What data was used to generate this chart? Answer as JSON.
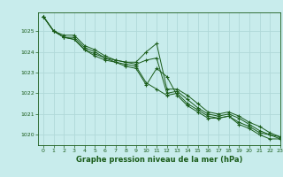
{
  "title": "Graphe pression niveau de la mer (hPa)",
  "background_color": "#c8ecec",
  "grid_color": "#b0d8d8",
  "line_color": "#1a5c1a",
  "text_color": "#1a5c1a",
  "xlim": [
    -0.5,
    23
  ],
  "ylim": [
    1019.5,
    1025.9
  ],
  "xticks": [
    0,
    1,
    2,
    3,
    4,
    5,
    6,
    7,
    8,
    9,
    10,
    11,
    12,
    13,
    14,
    15,
    16,
    17,
    18,
    19,
    20,
    21,
    22,
    23
  ],
  "yticks": [
    1020,
    1021,
    1022,
    1023,
    1024,
    1025
  ],
  "series": [
    [
      1025.7,
      1025.0,
      1024.7,
      1024.6,
      1024.1,
      1023.8,
      1023.6,
      1023.5,
      1023.3,
      1023.2,
      1022.4,
      1023.2,
      1022.8,
      1021.9,
      1021.4,
      1021.1,
      1020.8,
      1020.8,
      1020.9,
      1020.5,
      1020.3,
      1020.0,
      1019.8,
      1019.8
    ],
    [
      1025.7,
      1025.0,
      1024.7,
      1024.6,
      1024.1,
      1023.9,
      1023.7,
      1023.5,
      1023.4,
      1023.3,
      1022.5,
      1022.2,
      1021.9,
      1022.0,
      1021.5,
      1021.2,
      1020.9,
      1020.8,
      1020.9,
      1020.6,
      1020.4,
      1020.1,
      1020.0,
      1019.8
    ],
    [
      1025.7,
      1025.0,
      1024.7,
      1024.7,
      1024.2,
      1024.0,
      1023.7,
      1023.6,
      1023.5,
      1023.4,
      1023.6,
      1023.7,
      1022.0,
      1022.1,
      1021.7,
      1021.3,
      1021.0,
      1020.9,
      1021.0,
      1020.8,
      1020.5,
      1020.2,
      1020.0,
      1019.9
    ],
    [
      1025.7,
      1025.0,
      1024.8,
      1024.8,
      1024.3,
      1024.1,
      1023.8,
      1023.6,
      1023.5,
      1023.5,
      1024.0,
      1024.4,
      1022.2,
      1022.2,
      1021.9,
      1021.5,
      1021.1,
      1021.0,
      1021.1,
      1020.9,
      1020.6,
      1020.4,
      1020.1,
      1019.9
    ]
  ]
}
